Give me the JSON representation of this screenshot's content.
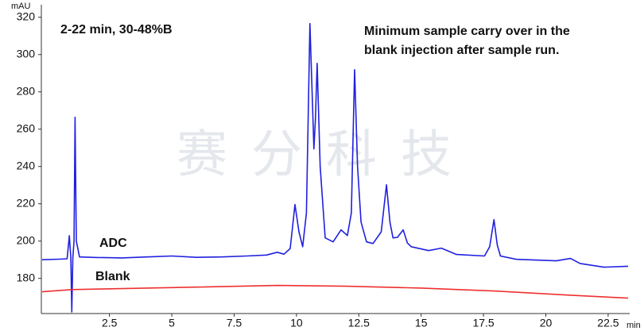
{
  "chart_data": {
    "type": "line",
    "y_label": "mAU",
    "x_label": "min",
    "watermark": "赛分科技",
    "annotations": [
      "2-22 min, 30-48%B",
      "Minimum sample carry over in the",
      "blank injection after sample run."
    ],
    "xlim": [
      -0.2,
      23.3
    ],
    "xticks": [
      2.5,
      5,
      7.5,
      10,
      12.5,
      15,
      17.5,
      20,
      22.5
    ],
    "ylim": [
      162,
      325
    ],
    "yticks": [
      180,
      200,
      220,
      240,
      260,
      280,
      300,
      320
    ],
    "grid": false,
    "series": [
      {
        "name": "ADC",
        "color": "#2020e0",
        "x": [
          -0.2,
          0.5,
          0.8,
          0.89,
          0.95,
          0.99,
          1.03,
          1.08,
          1.12,
          1.17,
          1.3,
          2,
          3,
          4,
          5,
          6,
          7,
          8,
          8.8,
          9.23,
          9.5,
          9.75,
          9.94,
          10.1,
          10.25,
          10.4,
          10.54,
          10.65,
          10.7,
          10.76,
          10.83,
          10.95,
          11.15,
          11.47,
          11.79,
          12.04,
          12.2,
          12.33,
          12.45,
          12.59,
          12.81,
          13.07,
          13.4,
          13.61,
          13.75,
          13.87,
          14.05,
          14.28,
          14.45,
          14.6,
          15.3,
          15.81,
          16.42,
          17.54,
          17.75,
          17.92,
          18.05,
          18.18,
          18.82,
          20.42,
          20.99,
          21.37,
          22.33,
          23.3
        ],
        "values": [
          190,
          190.3,
          190.5,
          202.9,
          191,
          162,
          191,
          200,
          266.4,
          200,
          191.5,
          191.2,
          191,
          191.5,
          192,
          191.3,
          191.5,
          192,
          192.5,
          194,
          193,
          196,
          219.6,
          205,
          197,
          215,
          316.6,
          270,
          249.4,
          265,
          295.3,
          240,
          201.7,
          199.6,
          206,
          203,
          215,
          291.9,
          240,
          210.2,
          199.6,
          198.7,
          205,
          230.2,
          210,
          201.7,
          202,
          206,
          199,
          197,
          194.9,
          196.2,
          192.8,
          192,
          197,
          211.5,
          198,
          192,
          190.2,
          189.4,
          190.7,
          188,
          186,
          186.5
        ]
      },
      {
        "name": "Blank",
        "color": "#ee3030",
        "x": [
          -0.2,
          1,
          3,
          6,
          9.23,
          12,
          15,
          18,
          21,
          23.3
        ],
        "values": [
          172.8,
          174,
          174.5,
          175.3,
          176.2,
          175.8,
          174.8,
          173.2,
          171,
          169.4
        ]
      }
    ]
  }
}
